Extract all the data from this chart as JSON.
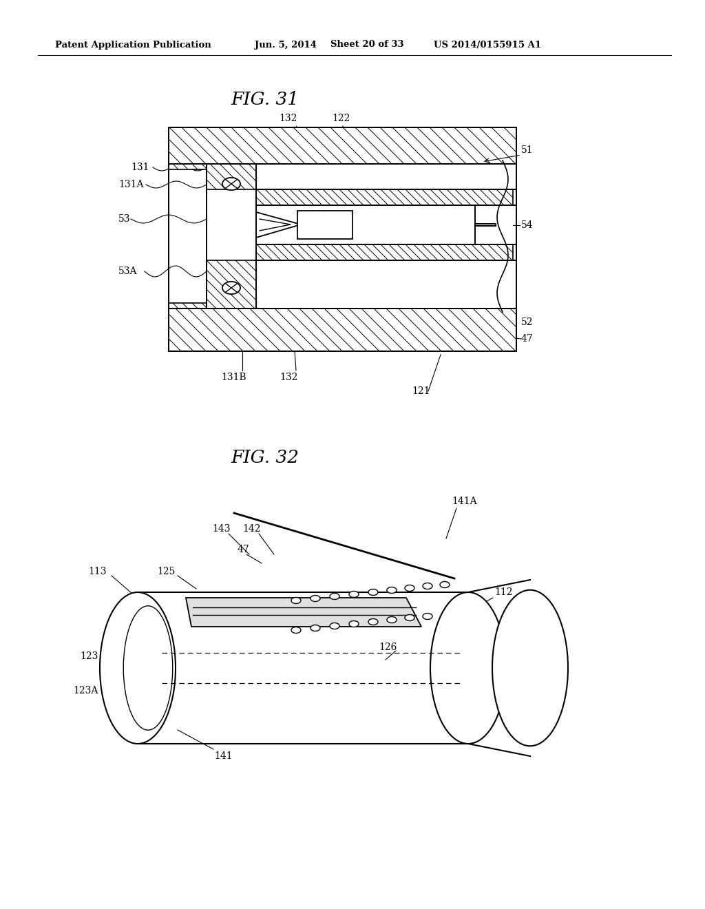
{
  "bg_color": "#ffffff",
  "header_left": "Patent Application Publication",
  "header_mid1": "Jun. 5, 2014",
  "header_mid2": "Sheet 20 of 33",
  "header_right": "US 2014/0155915 A1",
  "fig31_title": "FIG. 31",
  "fig32_title": "FIG. 32"
}
